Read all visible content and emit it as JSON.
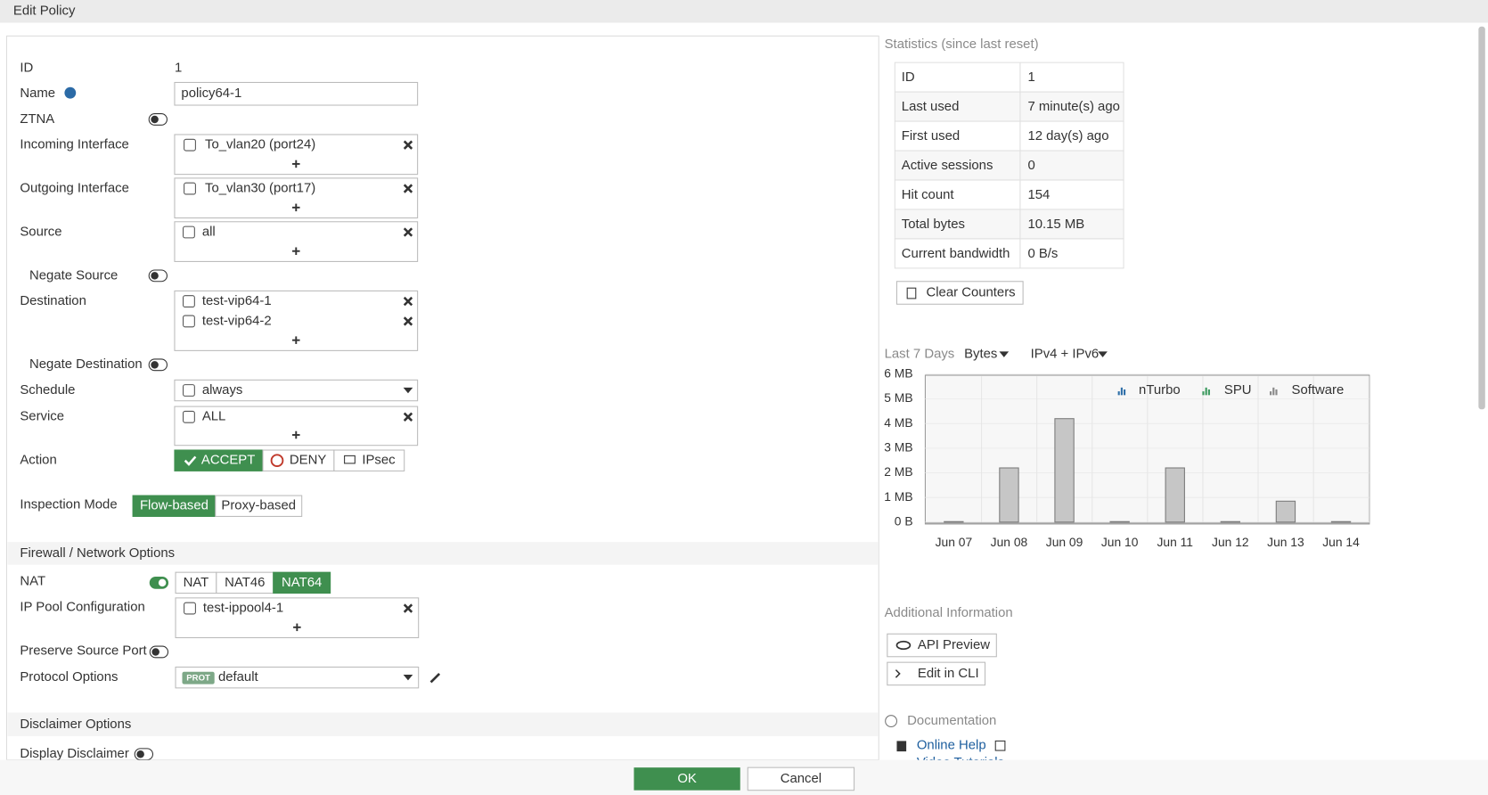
{
  "header": {
    "title": "Edit Policy"
  },
  "policy": {
    "id": {
      "label": "ID",
      "value": "1"
    },
    "name": {
      "label": "Name",
      "value": "policy64-1"
    },
    "ztna": {
      "label": "ZTNA"
    },
    "incoming_interface": {
      "label": "Incoming Interface",
      "items": [
        "To_vlan20 (port24)"
      ]
    },
    "outgoing_interface": {
      "label": "Outgoing Interface",
      "items": [
        "To_vlan30 (port17)"
      ]
    },
    "source": {
      "label": "Source",
      "items": [
        "all"
      ]
    },
    "negate_source": {
      "label": "Negate Source"
    },
    "destination": {
      "label": "Destination",
      "items": [
        "test-vip64-1",
        "test-vip64-2"
      ]
    },
    "negate_destination": {
      "label": "Negate Destination"
    },
    "schedule": {
      "label": "Schedule",
      "value": "always"
    },
    "service": {
      "label": "Service",
      "items": [
        "ALL"
      ]
    },
    "action": {
      "label": "Action",
      "options": [
        "ACCEPT",
        "DENY",
        "IPsec"
      ]
    },
    "inspection_mode": {
      "label": "Inspection Mode",
      "options": [
        "Flow-based",
        "Proxy-based"
      ]
    }
  },
  "firewall_options": {
    "title": "Firewall / Network Options",
    "nat": {
      "label": "NAT",
      "options": [
        "NAT",
        "NAT46",
        "NAT64"
      ]
    },
    "ip_pool": {
      "label": "IP Pool Configuration",
      "items": [
        "test-ippool4-1"
      ]
    },
    "preserve_source_port": {
      "label": "Preserve Source Port"
    },
    "protocol_options": {
      "label": "Protocol Options",
      "badge": "PROT",
      "value": "default"
    }
  },
  "disclaimer": {
    "title": "Disclaimer Options",
    "display_disclaimer": {
      "label": "Display Disclaimer"
    }
  },
  "footer": {
    "ok": "OK",
    "cancel": "Cancel"
  },
  "statistics": {
    "title": "Statistics (since last reset)",
    "rows": [
      [
        "ID",
        "1"
      ],
      [
        "Last used",
        "7 minute(s) ago"
      ],
      [
        "First used",
        "12 day(s) ago"
      ],
      [
        "Active sessions",
        "0"
      ],
      [
        "Hit count",
        "154"
      ],
      [
        "Total bytes",
        "10.15 MB"
      ],
      [
        "Current bandwidth",
        "0 B/s"
      ]
    ],
    "clear_button": "Clear Counters"
  },
  "traffic": {
    "period": "Last 7 Days",
    "unit_menu": "Bytes",
    "ip_menu": "IPv4 + IPv6"
  },
  "chart_data": {
    "type": "bar",
    "categories": [
      "Jun 07",
      "Jun 08",
      "Jun 09",
      "Jun 10",
      "Jun 11",
      "Jun 12",
      "Jun 13",
      "Jun 14"
    ],
    "series": [
      {
        "name": "nTurbo",
        "color": "#2f6fa8",
        "values": [
          0,
          0,
          0,
          0,
          0,
          0,
          0,
          0
        ]
      },
      {
        "name": "SPU",
        "color": "#3c9a5f",
        "values": [
          0,
          0,
          0,
          0,
          0,
          0,
          0,
          0
        ]
      },
      {
        "name": "Software",
        "color": "#c6c6c6",
        "values": [
          0.02,
          2.2,
          4.2,
          0.02,
          2.2,
          0.02,
          0.85,
          0.02
        ]
      }
    ],
    "ylim": [
      0,
      6
    ],
    "yticks": [
      {
        "value": 0,
        "label": "0 B"
      },
      {
        "value": 1,
        "label": "1 MB"
      },
      {
        "value": 2,
        "label": "2 MB"
      },
      {
        "value": 3,
        "label": "3 MB"
      },
      {
        "value": 4,
        "label": "4 MB"
      },
      {
        "value": 5,
        "label": "5 MB"
      },
      {
        "value": 6,
        "label": "6 MB"
      }
    ],
    "grid": true
  },
  "additional": {
    "title": "Additional Information",
    "buttons": [
      "API Preview",
      "Edit in CLI"
    ]
  },
  "documentation": {
    "title": "Documentation",
    "links": [
      "Online Help",
      "Video Tutorials"
    ]
  }
}
